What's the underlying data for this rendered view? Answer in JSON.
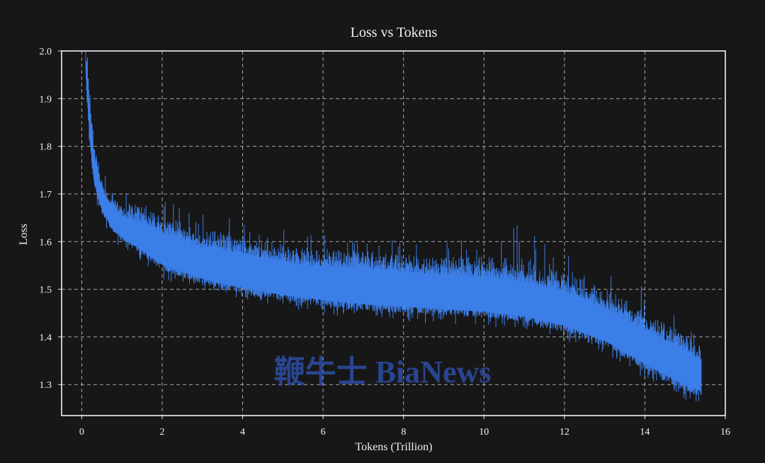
{
  "chart_data": {
    "type": "line",
    "title": "Loss vs Tokens",
    "xlabel": "Tokens (Trillion)",
    "ylabel": "Loss",
    "xlim": [
      -0.5,
      16
    ],
    "ylim": [
      1.235,
      2.0
    ],
    "xticks": [
      0,
      2,
      4,
      6,
      8,
      10,
      12,
      14,
      16
    ],
    "yticks": [
      1.3,
      1.4,
      1.5,
      1.6,
      1.7,
      1.8,
      1.9,
      2.0
    ],
    "x_tick_labels": [
      "0",
      "2",
      "4",
      "6",
      "8",
      "10",
      "12",
      "14",
      "16"
    ],
    "y_tick_labels": [
      "1.3",
      "1.4",
      "1.5",
      "1.6",
      "1.7",
      "1.8",
      "1.9",
      "2.0"
    ],
    "grid": true,
    "series": [
      {
        "color": "#3b7ee8",
        "x": [
          0.1,
          0.2,
          0.3,
          0.5,
          0.75,
          1.0,
          1.5,
          2.0,
          3.0,
          4.0,
          5.0,
          6.0,
          7.0,
          8.0,
          9.0,
          10.0,
          11.0,
          12.0,
          13.0,
          14.0,
          15.0,
          15.4
        ],
        "upper": [
          2.0,
          1.9,
          1.8,
          1.72,
          1.69,
          1.67,
          1.66,
          1.64,
          1.61,
          1.6,
          1.58,
          1.57,
          1.57,
          1.56,
          1.555,
          1.55,
          1.54,
          1.52,
          1.48,
          1.44,
          1.395,
          1.375
        ],
        "lower": [
          1.95,
          1.8,
          1.72,
          1.66,
          1.62,
          1.6,
          1.57,
          1.54,
          1.51,
          1.49,
          1.475,
          1.465,
          1.455,
          1.45,
          1.445,
          1.44,
          1.43,
          1.41,
          1.38,
          1.33,
          1.285,
          1.275
        ],
        "spike_max": [
          2.0,
          2.0,
          1.84,
          1.8,
          1.74,
          1.72,
          1.7,
          1.69,
          1.67,
          1.64,
          1.63,
          1.62,
          1.61,
          1.6,
          1.6,
          1.61,
          1.64,
          1.58,
          1.55,
          1.51,
          1.43,
          1.41
        ]
      }
    ]
  },
  "watermark": "鞭牛士 BiaNews"
}
